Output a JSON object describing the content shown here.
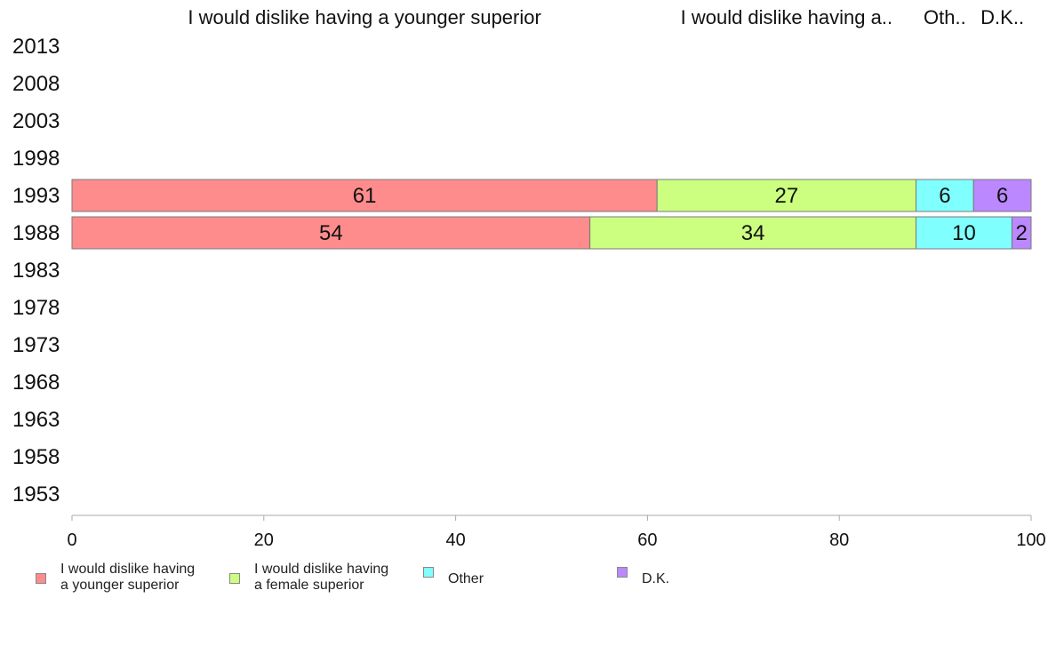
{
  "chart_data": {
    "type": "bar",
    "orientation": "horizontal",
    "stacked": true,
    "categories": [
      "2013",
      "2008",
      "2003",
      "1998",
      "1993",
      "1988",
      "1983",
      "1978",
      "1973",
      "1968",
      "1963",
      "1958",
      "1953"
    ],
    "series": [
      {
        "name": "I would dislike having a younger superior",
        "short_label": "I would dislike having a younger superior",
        "color": "#ff8c8c",
        "values": [
          null,
          null,
          null,
          null,
          61,
          54,
          null,
          null,
          null,
          null,
          null,
          null,
          null
        ]
      },
      {
        "name": "I would dislike having a female superior",
        "short_label": "I would dislike having a..",
        "color": "#ccff80",
        "values": [
          null,
          null,
          null,
          null,
          27,
          34,
          null,
          null,
          null,
          null,
          null,
          null,
          null
        ]
      },
      {
        "name": "Other",
        "short_label": "Oth..",
        "color": "#80ffff",
        "values": [
          null,
          null,
          null,
          null,
          6,
          10,
          null,
          null,
          null,
          null,
          null,
          null,
          null
        ]
      },
      {
        "name": "D.K.",
        "short_label": "D.K..",
        "color": "#bb88ff",
        "values": [
          null,
          null,
          null,
          null,
          6,
          2,
          null,
          null,
          null,
          null,
          null,
          null,
          null
        ]
      }
    ],
    "xlim": [
      0,
      100
    ],
    "xticks": [
      0,
      20,
      40,
      60,
      80,
      100
    ],
    "grid": false,
    "legend_position": "bottom",
    "legend_labels": [
      "I would dislike having\na younger superior",
      "I would dislike having\na female superior",
      "Other",
      "D.K."
    ]
  }
}
